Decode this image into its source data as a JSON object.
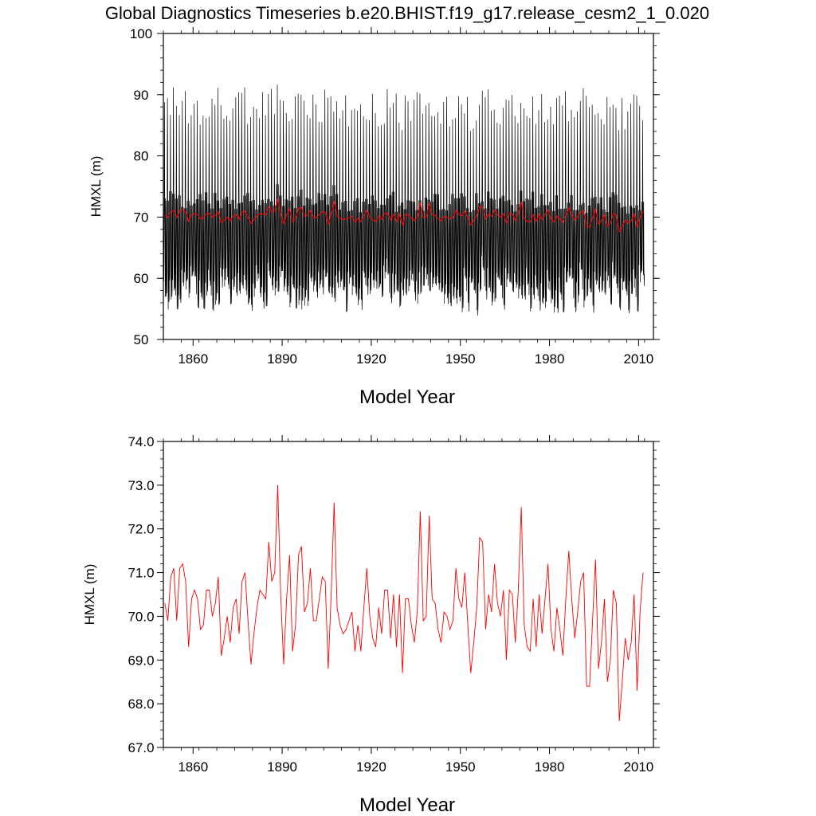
{
  "title": "Global Diagnostics Timeseries b.e20.BHIST.f19_g17.release_cesm2_1_0.020",
  "colors": {
    "monthly": "#000000",
    "annual": "#ff0000",
    "frame": "#000000"
  },
  "chart_data": [
    {
      "type": "line",
      "name": "monthly-and-annual-hmxl",
      "xlabel": "Model Year",
      "ylabel": "HMXL (m)",
      "xlim": [
        1850,
        2015
      ],
      "ylim": [
        50,
        100
      ],
      "xticks": [
        1860,
        1890,
        1920,
        1950,
        1980,
        2010
      ],
      "xtick_labels": [
        "1860",
        "1890",
        "1920",
        "1950",
        "1980",
        "2010"
      ],
      "yticks": [
        50,
        60,
        70,
        80,
        90,
        100
      ],
      "ytick_labels": [
        "50",
        "60",
        "70",
        "80",
        "90",
        "100"
      ],
      "series": [
        {
          "name": "monthly",
          "color": "#000000",
          "monthly_summary": {
            "seasonal_max_range": [
              84.5,
              90.8
            ],
            "seasonal_min_range": [
              53.6,
              59.5
            ],
            "secondary_peak_range": [
              71.0,
              74.0
            ]
          }
        },
        {
          "name": "annual",
          "color": "#ff0000",
          "source": "annual_mean"
        }
      ]
    },
    {
      "type": "line",
      "name": "annual-mean-hmxl",
      "xlabel": "Model Year",
      "ylabel": "HMXL (m)",
      "xlim": [
        1850,
        2015
      ],
      "ylim": [
        67.0,
        74.0
      ],
      "xticks": [
        1860,
        1890,
        1920,
        1950,
        1980,
        2010
      ],
      "xtick_labels": [
        "1860",
        "1890",
        "1920",
        "1950",
        "1980",
        "2010"
      ],
      "yticks": [
        67.0,
        68.0,
        69.0,
        70.0,
        71.0,
        72.0,
        73.0,
        74.0
      ],
      "ytick_labels": [
        "67.0",
        "68.0",
        "69.0",
        "70.0",
        "71.0",
        "72.0",
        "73.0",
        "74.0"
      ],
      "series": [
        {
          "name": "annual_mean",
          "color": "#ff0000",
          "x_start": 1850,
          "values": [
            70.3,
            69.9,
            70.9,
            71.1,
            69.9,
            71.1,
            71.2,
            70.8,
            69.3,
            70.4,
            70.6,
            70.4,
            69.7,
            69.8,
            70.6,
            70.6,
            70.0,
            70.3,
            70.9,
            69.1,
            69.5,
            70.0,
            69.4,
            70.2,
            70.4,
            69.6,
            70.8,
            71.0,
            69.9,
            68.9,
            69.6,
            70.2,
            70.6,
            70.5,
            70.4,
            71.7,
            70.8,
            71.0,
            73.0,
            70.5,
            68.9,
            70.4,
            71.4,
            69.2,
            69.8,
            71.4,
            71.6,
            70.1,
            70.3,
            71.1,
            69.9,
            69.9,
            70.4,
            70.9,
            70.8,
            68.8,
            70.5,
            72.6,
            70.2,
            69.8,
            69.6,
            69.7,
            69.9,
            70.1,
            69.2,
            69.8,
            69.2,
            70.2,
            71.1,
            70.0,
            69.5,
            69.3,
            70.2,
            69.6,
            70.6,
            70.6,
            69.5,
            70.5,
            69.3,
            70.5,
            68.7,
            70.4,
            70.4,
            69.8,
            69.4,
            70.1,
            72.4,
            69.9,
            70.0,
            72.3,
            70.4,
            70.3,
            69.7,
            69.4,
            70.1,
            70.0,
            69.7,
            69.9,
            71.1,
            70.4,
            70.2,
            71.0,
            69.8,
            68.7,
            69.4,
            70.2,
            71.8,
            71.7,
            69.7,
            70.5,
            70.1,
            71.2,
            70.3,
            70.0,
            70.6,
            69.0,
            70.6,
            70.5,
            69.4,
            70.6,
            72.5,
            69.8,
            69.3,
            69.2,
            70.4,
            69.3,
            70.5,
            69.6,
            70.4,
            71.2,
            69.7,
            69.2,
            70.2,
            69.7,
            69.1,
            70.4,
            71.5,
            70.4,
            69.5,
            70.1,
            70.8,
            71.0,
            68.4,
            68.4,
            69.9,
            71.3,
            68.8,
            69.4,
            70.4,
            68.5,
            69.0,
            70.6,
            70.3,
            67.6,
            68.5,
            69.5,
            69.0,
            69.4,
            70.5,
            68.3,
            70.1,
            71.0
          ]
        }
      ]
    }
  ]
}
